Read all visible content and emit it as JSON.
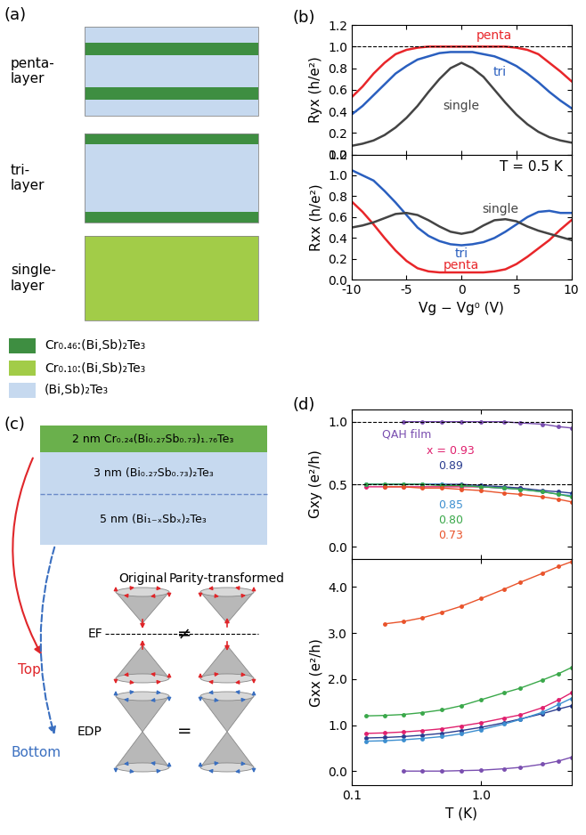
{
  "a": {
    "label": "(a)",
    "stacks": [
      {
        "name": "penta-\nlayer",
        "layers": [
          2,
          0,
          2,
          0,
          2
        ]
      },
      {
        "name": "tri-\nlayer",
        "layers": [
          0,
          2,
          0
        ]
      },
      {
        "name": "single-\nlayer",
        "layers": [
          1
        ]
      }
    ],
    "materials": [
      {
        "name": "Cr₀.₄₆:(Bi,Sb)₂Te₃",
        "color": "#3e8e41"
      },
      {
        "name": "Cr₀.₁₀:(Bi,Sb)₂Te₃",
        "color": "#a2cc48"
      },
      {
        "name": "(Bi,Sb)₂Te₃",
        "color": "#c6d9ef"
      }
    ]
  },
  "c": {
    "label": "(c)",
    "layers": [
      "2 nm Cr₀.₂₄(Bi₀.₂₇Sb₀.₇₃)₁.₇₆Te₃",
      "3 nm (Bi₀.₂₇Sb₀.₇₃)₂Te₃",
      "5 nm (Bi₁₋ₓSbₓ)₂Te₃"
    ],
    "columns": [
      "Original",
      "Parity-transformed"
    ],
    "rows": [
      "Top",
      "Bottom"
    ],
    "levels": [
      "EF",
      "EDP"
    ],
    "relations": [
      "≠",
      "="
    ]
  },
  "chart_data": [
    {
      "panel": "(b)",
      "type": "line",
      "ylabel": "Ryx (h/e²)",
      "xlim": [
        -10,
        10
      ],
      "xticks": [
        -10,
        -5,
        0,
        5,
        10
      ],
      "ylim": [
        0.0,
        1.2
      ],
      "yticks": [
        0.0,
        0.2,
        0.4,
        0.6,
        0.8,
        1.0,
        1.2
      ],
      "tick_labels": "y",
      "reference_lines": [
        1.0
      ],
      "x": [
        -10,
        -9,
        -8,
        -7,
        -6,
        -5,
        -4,
        -3,
        -2,
        -1,
        0,
        1,
        2,
        3,
        4,
        5,
        6,
        7,
        8,
        9,
        10
      ],
      "series": [
        {
          "name": "penta",
          "color": "#e8262a",
          "values": [
            0.53,
            0.63,
            0.75,
            0.85,
            0.93,
            0.97,
            0.99,
            1.0,
            1.0,
            1.0,
            1.0,
            1.0,
            1.0,
            1.0,
            1.0,
            0.99,
            0.97,
            0.93,
            0.85,
            0.77,
            0.68
          ]
        },
        {
          "name": "tri",
          "color": "#2a5fbf",
          "values": [
            0.37,
            0.45,
            0.55,
            0.65,
            0.75,
            0.82,
            0.88,
            0.91,
            0.94,
            0.95,
            0.95,
            0.95,
            0.93,
            0.91,
            0.87,
            0.82,
            0.75,
            0.67,
            0.58,
            0.5,
            0.43
          ]
        },
        {
          "name": "single",
          "color": "#444444",
          "values": [
            0.08,
            0.1,
            0.13,
            0.18,
            0.25,
            0.34,
            0.45,
            0.58,
            0.7,
            0.8,
            0.85,
            0.8,
            0.72,
            0.6,
            0.48,
            0.37,
            0.28,
            0.21,
            0.16,
            0.13,
            0.11
          ]
        }
      ]
    },
    {
      "type": "line",
      "ylabel": "Rxx (h/e²)",
      "xlabel": "Vg − Vg⁰ (V)",
      "annotation": "T = 0.5 K",
      "xlim": [
        -10,
        10
      ],
      "xticks": [
        -10,
        -5,
        0,
        5,
        10
      ],
      "ylim": [
        0.0,
        1.2
      ],
      "yticks": [
        0.0,
        0.2,
        0.4,
        0.6,
        0.8,
        1.0,
        1.2
      ],
      "x": [
        -10,
        -9,
        -8,
        -7,
        -6,
        -5,
        -4,
        -3,
        -2,
        -1,
        0,
        1,
        2,
        3,
        4,
        5,
        6,
        7,
        8,
        9,
        10
      ],
      "series": [
        {
          "name": "penta",
          "color": "#e8262a",
          "values": [
            0.75,
            0.65,
            0.53,
            0.4,
            0.28,
            0.18,
            0.11,
            0.08,
            0.07,
            0.07,
            0.07,
            0.07,
            0.07,
            0.08,
            0.1,
            0.15,
            0.22,
            0.3,
            0.38,
            0.48,
            0.57
          ]
        },
        {
          "name": "tri",
          "color": "#2a5fbf",
          "values": [
            1.05,
            1.0,
            0.95,
            0.85,
            0.74,
            0.62,
            0.5,
            0.42,
            0.37,
            0.34,
            0.33,
            0.34,
            0.36,
            0.4,
            0.46,
            0.53,
            0.6,
            0.65,
            0.66,
            0.64,
            0.64
          ]
        },
        {
          "name": "single",
          "color": "#444444",
          "values": [
            0.5,
            0.52,
            0.55,
            0.59,
            0.63,
            0.64,
            0.62,
            0.57,
            0.51,
            0.46,
            0.44,
            0.46,
            0.52,
            0.57,
            0.58,
            0.56,
            0.51,
            0.47,
            0.44,
            0.41,
            0.38
          ]
        }
      ]
    },
    {
      "panel": "(d)",
      "type": "line",
      "ylabel": "Gxy (e²/h)",
      "log": "x",
      "xlim": [
        0.1,
        5.0
      ],
      "xticks": [
        0.1,
        1.0
      ],
      "ylim": [
        -0.1,
        1.1
      ],
      "yticks": [
        0.0,
        0.5,
        1.0
      ],
      "tick_labels": "y",
      "reference_lines": [
        1.0,
        0.5
      ],
      "x": [
        0.13,
        0.18,
        0.25,
        0.35,
        0.5,
        0.7,
        1.0,
        1.5,
        2.0,
        3.0,
        4.0,
        5.0
      ],
      "series": [
        {
          "name": "QAH film",
          "color": "#7a4fb0",
          "marker": "o",
          "values": [
            null,
            null,
            1.0,
            1.0,
            1.0,
            1.0,
            1.0,
            1.0,
            0.99,
            0.98,
            0.96,
            0.95
          ]
        },
        {
          "name": "x = 0.93",
          "color": "#e0206e",
          "marker": "o",
          "values": [
            0.48,
            0.48,
            0.48,
            0.48,
            0.48,
            0.48,
            0.48,
            0.47,
            0.47,
            null,
            null,
            null
          ]
        },
        {
          "name": "0.89",
          "color": "#2b3d8f",
          "marker": "o",
          "values": [
            0.5,
            0.5,
            0.5,
            0.5,
            0.5,
            0.5,
            0.49,
            0.48,
            0.47,
            0.45,
            0.44,
            0.43
          ]
        },
        {
          "name": "0.85",
          "color": "#3d8fd0",
          "marker": "o",
          "values": [
            0.5,
            0.5,
            0.5,
            0.5,
            0.5,
            0.49,
            0.48,
            0.47,
            0.46,
            0.44,
            0.42,
            0.41
          ]
        },
        {
          "name": "0.80",
          "color": "#3aa84a",
          "marker": "o",
          "values": [
            0.5,
            0.5,
            0.5,
            0.5,
            0.49,
            0.49,
            0.48,
            0.47,
            0.46,
            0.44,
            0.42,
            0.4
          ]
        },
        {
          "name": "0.73",
          "color": "#e9532b",
          "marker": "o",
          "values": [
            null,
            0.48,
            0.48,
            0.47,
            0.47,
            0.46,
            0.45,
            0.43,
            0.42,
            0.4,
            0.38,
            0.36
          ]
        }
      ]
    },
    {
      "type": "line",
      "ylabel": "Gxx (e²/h)",
      "xlabel": "T (K)",
      "log": "x",
      "xlim": [
        0.1,
        5.0
      ],
      "xticks": [
        0.1,
        1.0
      ],
      "ylim": [
        -0.3,
        4.6
      ],
      "yticks": [
        0.0,
        1.0,
        2.0,
        3.0,
        4.0
      ],
      "x": [
        0.13,
        0.18,
        0.25,
        0.35,
        0.5,
        0.7,
        1.0,
        1.5,
        2.0,
        3.0,
        4.0,
        5.0
      ],
      "series": [
        {
          "color": "#7a4fb0",
          "marker": "o",
          "values": [
            null,
            null,
            0.0,
            0.0,
            0.0,
            0.01,
            0.02,
            0.05,
            0.08,
            0.15,
            0.22,
            0.3
          ]
        },
        {
          "color": "#e0206e",
          "marker": "o",
          "values": [
            0.82,
            0.83,
            0.85,
            0.88,
            0.92,
            0.98,
            1.05,
            1.15,
            1.22,
            1.38,
            1.55,
            1.7
          ]
        },
        {
          "color": "#2b3d8f",
          "marker": "o",
          "values": [
            0.72,
            0.73,
            0.75,
            0.78,
            0.82,
            0.88,
            0.95,
            1.05,
            1.13,
            1.25,
            1.35,
            1.42
          ]
        },
        {
          "color": "#3d8fd0",
          "marker": "o",
          "values": [
            0.65,
            0.66,
            0.68,
            0.71,
            0.75,
            0.81,
            0.9,
            1.02,
            1.12,
            1.28,
            1.45,
            1.58
          ]
        },
        {
          "color": "#3aa84a",
          "marker": "o",
          "values": [
            1.2,
            1.21,
            1.23,
            1.27,
            1.33,
            1.42,
            1.55,
            1.7,
            1.8,
            1.98,
            2.12,
            2.25
          ]
        },
        {
          "color": "#e9532b",
          "marker": "o",
          "values": [
            null,
            3.2,
            3.25,
            3.33,
            3.45,
            3.58,
            3.75,
            3.95,
            4.1,
            4.3,
            4.45,
            4.55
          ]
        }
      ]
    }
  ]
}
